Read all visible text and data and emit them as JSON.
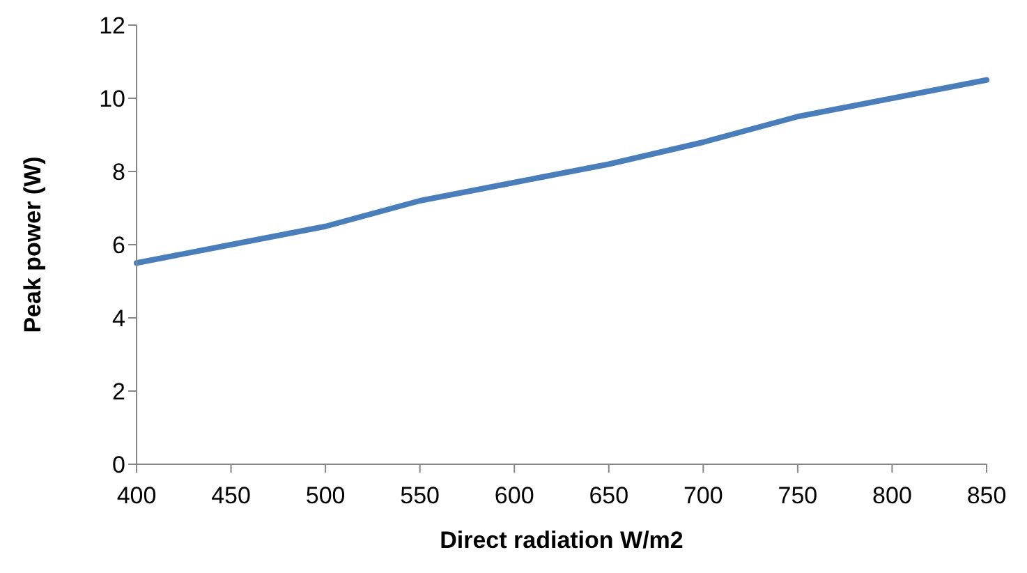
{
  "chart_data": {
    "type": "line",
    "xlabel": "Direct radiation  W/m2",
    "ylabel": "Peak power (W)",
    "categories": [
      "400",
      "450",
      "500",
      "550",
      "600",
      "650",
      "700",
      "750",
      "800",
      "850"
    ],
    "series": [
      {
        "color": "#4a7ebb",
        "values": [
          5.5,
          6.0,
          6.5,
          7.2,
          7.7,
          8.2,
          8.8,
          9.5,
          10.0,
          10.5
        ]
      }
    ],
    "ylim": [
      0,
      12
    ],
    "yticks": [
      0,
      2,
      4,
      6,
      8,
      10,
      12
    ],
    "grid": false,
    "legend": false
  }
}
